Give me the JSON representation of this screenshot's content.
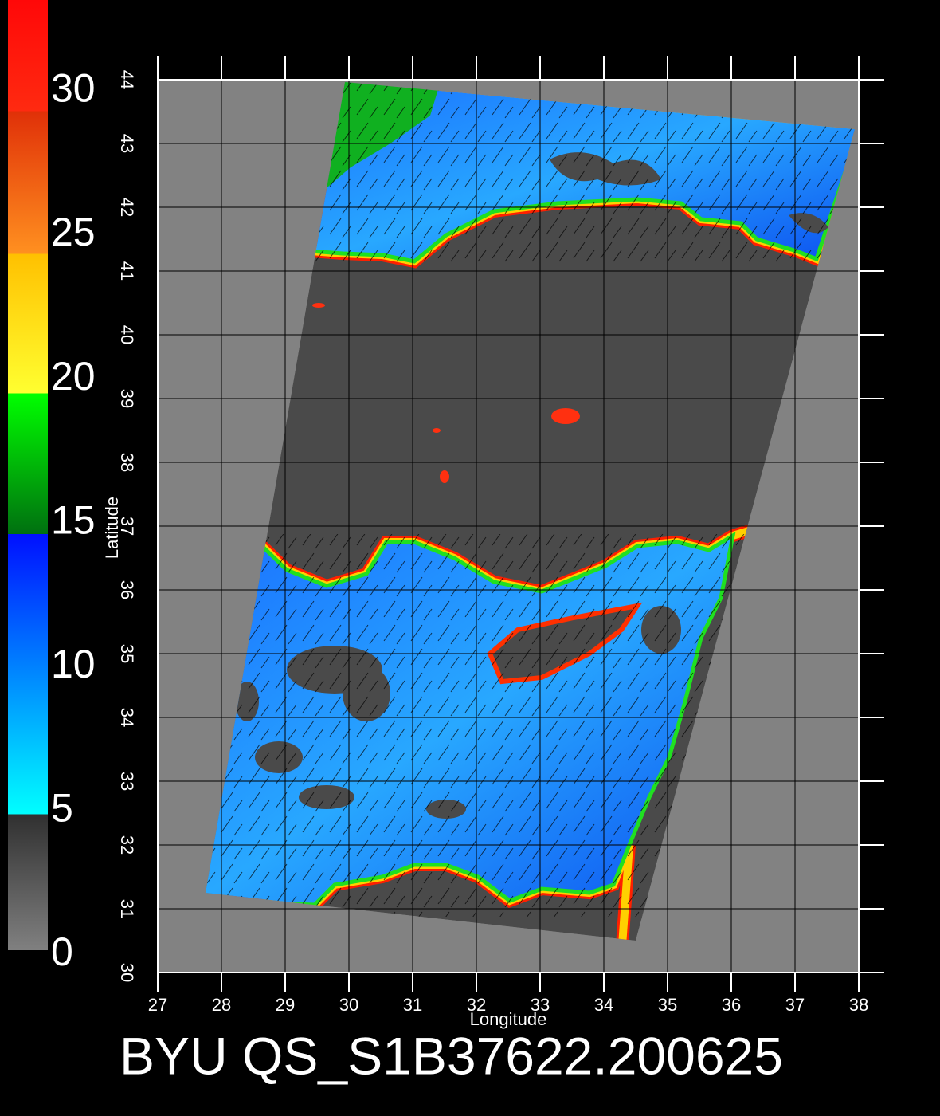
{
  "chart_data": {
    "type": "map",
    "title": "BYU QS_S1B37622.200625",
    "xlabel": "Longitude",
    "ylabel": "Latitude",
    "xlim": [
      27,
      38
    ],
    "xticks": [
      27,
      28,
      29,
      30,
      31,
      32,
      33,
      34,
      35,
      36,
      37,
      38
    ],
    "ylim": [
      30,
      44
    ],
    "yticks": [
      30,
      31,
      32,
      33,
      34,
      35,
      36,
      37,
      38,
      39,
      40,
      41,
      42,
      43,
      44
    ],
    "grid": true,
    "colorbar": {
      "lim": [
        0,
        33
      ],
      "ticks": [
        0,
        5,
        10,
        15,
        20,
        25,
        30
      ]
    }
  }
}
